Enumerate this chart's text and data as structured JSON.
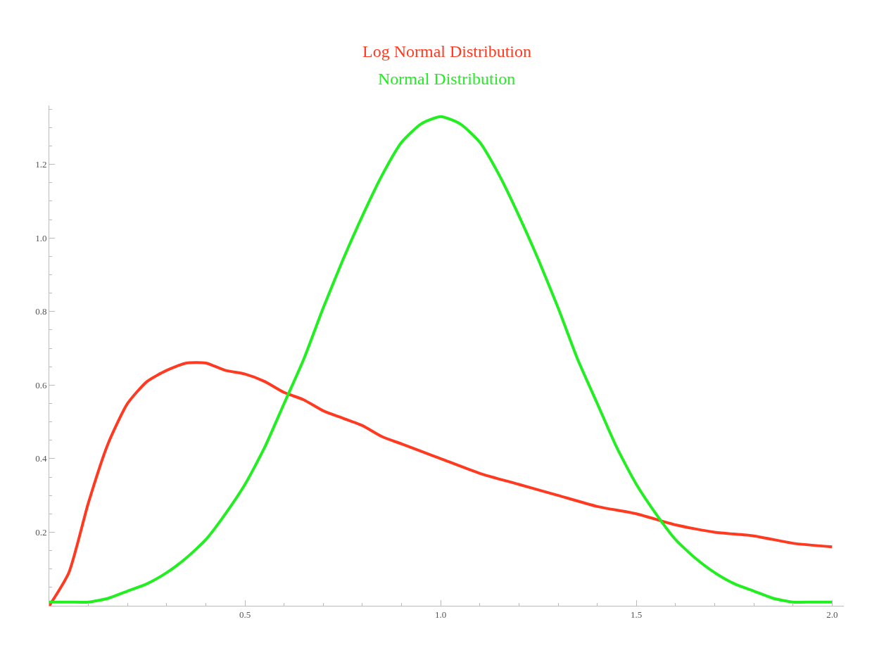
{
  "chart_data": {
    "type": "line",
    "xlim": [
      0,
      2.03
    ],
    "ylim": [
      0,
      1.36
    ],
    "xticks": [
      0.5,
      {
        "value": 1,
        "label": "1.0"
      },
      1.5,
      {
        "value": 2,
        "label": "2.0"
      }
    ],
    "yticks": [
      0.2,
      0.4,
      0.6,
      0.8,
      {
        "value": 1,
        "label": "1.0"
      },
      1.2
    ],
    "legend": false,
    "marker": "none",
    "line_style": "solid",
    "series": [
      {
        "name": "Log Normal Distribution",
        "color": "#ff3a20",
        "x": [
          0,
          0.05,
          0.1,
          0.15,
          0.2,
          0.25,
          0.3,
          0.35,
          0.4,
          0.45,
          0.5,
          0.55,
          0.6,
          0.65,
          0.7,
          0.75,
          0.8,
          0.85,
          0.9,
          0.95,
          1.0,
          1.1,
          1.2,
          1.3,
          1.4,
          1.5,
          1.6,
          1.7,
          1.8,
          1.9,
          2.0
        ],
        "values": [
          0,
          0.09,
          0.28,
          0.44,
          0.55,
          0.61,
          0.64,
          0.66,
          0.66,
          0.64,
          0.63,
          0.61,
          0.58,
          0.56,
          0.53,
          0.51,
          0.49,
          0.46,
          0.44,
          0.42,
          0.4,
          0.36,
          0.33,
          0.3,
          0.27,
          0.25,
          0.22,
          0.2,
          0.19,
          0.17,
          0.16
        ]
      },
      {
        "name": "Normal Distribution",
        "color": "#22ee22",
        "x": [
          0,
          0.05,
          0.1,
          0.15,
          0.2,
          0.25,
          0.3,
          0.35,
          0.4,
          0.45,
          0.5,
          0.55,
          0.6,
          0.65,
          0.7,
          0.75,
          0.8,
          0.85,
          0.9,
          0.95,
          1.0,
          1.05,
          1.1,
          1.15,
          1.2,
          1.25,
          1.3,
          1.35,
          1.4,
          1.45,
          1.5,
          1.55,
          1.6,
          1.65,
          1.7,
          1.75,
          1.8,
          1.85,
          1.9,
          1.95,
          2.0
        ],
        "values": [
          0.01,
          0.01,
          0.01,
          0.02,
          0.04,
          0.06,
          0.09,
          0.13,
          0.18,
          0.25,
          0.33,
          0.43,
          0.55,
          0.67,
          0.81,
          0.94,
          1.06,
          1.17,
          1.26,
          1.31,
          1.33,
          1.31,
          1.26,
          1.17,
          1.06,
          0.94,
          0.81,
          0.67,
          0.55,
          0.43,
          0.33,
          0.25,
          0.18,
          0.13,
          0.09,
          0.06,
          0.04,
          0.02,
          0.01,
          0.01,
          0.01
        ]
      }
    ]
  }
}
